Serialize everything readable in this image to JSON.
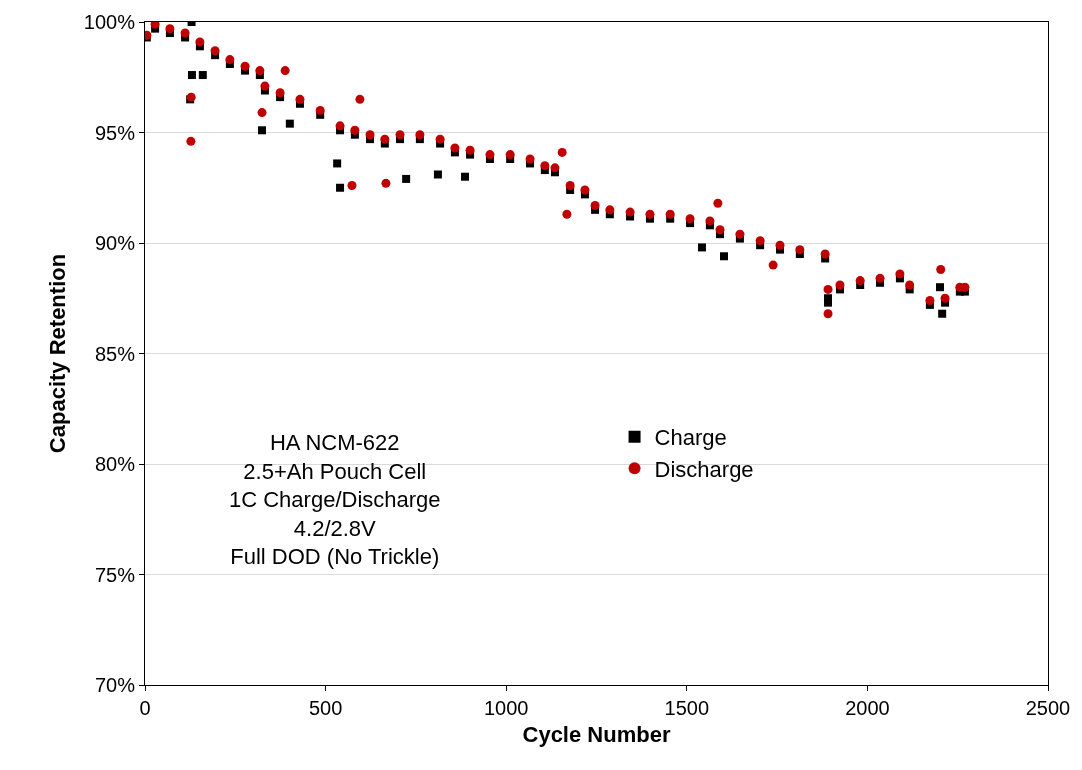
{
  "chart_data": {
    "type": "scatter",
    "xlabel": "Cycle Number",
    "ylabel": "Capacity Retention",
    "xlim": [
      0,
      2500
    ],
    "xticks": [
      0,
      500,
      1000,
      1500,
      2000,
      2500
    ],
    "ylim": [
      70,
      100
    ],
    "yticks": [
      {
        "value": 70,
        "label": "70%"
      },
      {
        "value": 75,
        "label": "75%"
      },
      {
        "value": 80,
        "label": "80%"
      },
      {
        "value": 85,
        "label": "85%"
      },
      {
        "value": 90,
        "label": "90%"
      },
      {
        "value": 95,
        "label": "95%"
      },
      {
        "value": 100,
        "label": "100%"
      }
    ],
    "grid": "y",
    "legend": "center",
    "annotations": [
      "HA NCM-622\n2.5+Ah Pouch Cell\n1C Charge/Discharge\n4.2/2.8V\nFull DOD (No Trickle)"
    ],
    "series": [
      {
        "name": "Charge",
        "color": "#000000",
        "marker": "square",
        "x": [
          5,
          28,
          69,
          111,
          152,
          194,
          235,
          277,
          318,
          332,
          374,
          429,
          485,
          540,
          581,
          623,
          664,
          706,
          761,
          817,
          858,
          900,
          955,
          1011,
          1066,
          1107,
          1135,
          1177,
          1218,
          1246,
          1287,
          1343,
          1398,
          1454,
          1509,
          1564,
          1592,
          1647,
          1703,
          1758,
          1813,
          1883,
          1891,
          1924,
          1980,
          2035,
          2090,
          2117,
          2173,
          2215,
          2256,
          2270,
          129,
          125,
          130,
          160,
          324,
          401,
          532,
          540,
          723,
          811,
          886,
          1542,
          1603,
          2201,
          2207,
          1891
        ],
        "values": [
          99.3,
          99.7,
          99.5,
          99.3,
          98.9,
          98.5,
          98.1,
          97.8,
          97.6,
          96.9,
          96.6,
          96.3,
          95.8,
          95.1,
          94.9,
          94.7,
          94.5,
          94.7,
          94.7,
          94.5,
          94.1,
          94.0,
          93.8,
          93.8,
          93.6,
          93.3,
          93.2,
          92.4,
          92.2,
          91.5,
          91.3,
          91.2,
          91.1,
          91.1,
          90.9,
          90.8,
          90.4,
          90.2,
          89.9,
          89.7,
          89.5,
          89.3,
          87.5,
          87.9,
          88.1,
          88.2,
          88.4,
          87.9,
          87.2,
          87.3,
          87.8,
          87.8,
          100.0,
          96.5,
          97.6,
          97.6,
          95.1,
          95.4,
          93.6,
          92.5,
          92.9,
          93.1,
          93.0,
          89.8,
          89.4,
          88.0,
          86.8,
          87.3
        ]
      },
      {
        "name": "Discharge",
        "color": "#c00000",
        "marker": "circle",
        "x": [
          5,
          28,
          69,
          111,
          152,
          194,
          235,
          277,
          318,
          332,
          374,
          429,
          485,
          540,
          581,
          623,
          664,
          706,
          761,
          817,
          858,
          900,
          955,
          1011,
          1066,
          1107,
          1135,
          1177,
          1218,
          1246,
          1287,
          1343,
          1398,
          1454,
          1509,
          1564,
          1592,
          1647,
          1703,
          1758,
          1813,
          1883,
          1891,
          1924,
          1980,
          2035,
          2090,
          2117,
          2173,
          2215,
          2256,
          2270,
          127,
          128,
          388,
          324,
          573,
          595,
          667,
          1155,
          1168,
          1586,
          1739,
          1891,
          2203
        ],
        "values": [
          99.4,
          99.9,
          99.7,
          99.5,
          99.1,
          98.7,
          98.3,
          98.0,
          97.8,
          97.1,
          96.8,
          96.5,
          96.0,
          95.3,
          95.1,
          94.9,
          94.7,
          94.9,
          94.9,
          94.7,
          94.3,
          94.2,
          94.0,
          94.0,
          93.8,
          93.5,
          93.4,
          92.6,
          92.4,
          91.7,
          91.5,
          91.4,
          91.3,
          91.3,
          91.1,
          91.0,
          90.6,
          90.4,
          90.1,
          89.9,
          89.7,
          89.5,
          87.9,
          88.1,
          88.3,
          88.4,
          88.6,
          88.1,
          87.4,
          87.5,
          88.0,
          88.0,
          94.6,
          96.6,
          97.8,
          95.9,
          92.6,
          96.5,
          92.7,
          94.1,
          91.3,
          91.8,
          89.0,
          86.8,
          88.8
        ]
      }
    ]
  }
}
